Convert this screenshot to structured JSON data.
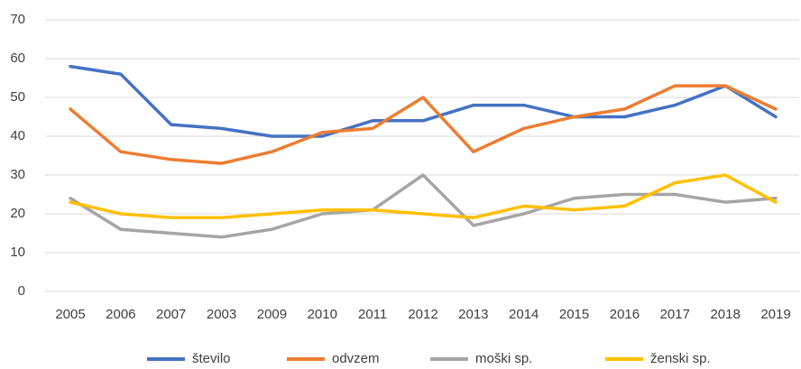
{
  "chart_data": {
    "type": "line",
    "categories": [
      "2005",
      "2006",
      "2007",
      "2003",
      "2009",
      "2010",
      "2011",
      "2012",
      "2013",
      "2014",
      "2015",
      "2016",
      "2017",
      "2018",
      "2019"
    ],
    "series": [
      {
        "name": "število",
        "color": "#4472c4",
        "values": [
          58,
          56,
          43,
          42,
          40,
          40,
          44,
          44,
          48,
          48,
          45,
          45,
          48,
          53,
          45
        ]
      },
      {
        "name": "odvzem",
        "color": "#ed7d31",
        "values": [
          47,
          36,
          34,
          33,
          36,
          41,
          42,
          50,
          36,
          42,
          45,
          47,
          53,
          53,
          47
        ]
      },
      {
        "name": "moški sp.",
        "color": "#a5a5a5",
        "values": [
          24,
          16,
          15,
          14,
          16,
          20,
          21,
          30,
          17,
          20,
          24,
          25,
          25,
          23,
          24
        ]
      },
      {
        "name": "ženski sp.",
        "color": "#ffc000",
        "values": [
          23,
          20,
          19,
          19,
          20,
          21,
          21,
          20,
          19,
          22,
          21,
          22,
          28,
          30,
          23
        ]
      }
    ],
    "ylim": [
      0,
      70
    ],
    "yticks": [
      0,
      10,
      20,
      30,
      40,
      50,
      60,
      70
    ],
    "grid": true,
    "legend": "bottom"
  }
}
